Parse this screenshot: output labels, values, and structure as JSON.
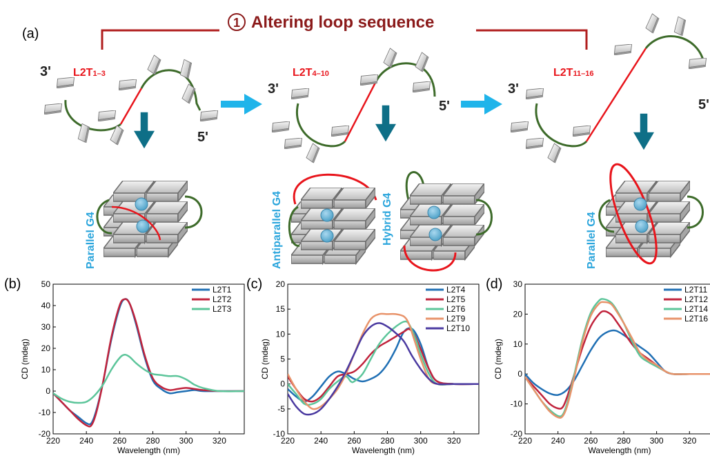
{
  "panel_a": {
    "panel_label": "(a)",
    "header_number": "1",
    "header_text": "Altering loop sequence",
    "groups": [
      {
        "seq_main": "L2T",
        "seq_sub": "1–3",
        "end3": "3'",
        "end5": "5'",
        "g4_labels": [
          "Parallel G4"
        ]
      },
      {
        "seq_main": "L2T",
        "seq_sub": "4–10",
        "end3": "3'",
        "end5": "5'",
        "g4_labels": [
          "Antiparallel G4",
          "Hybrid G4"
        ]
      },
      {
        "seq_main": "L2T",
        "seq_sub": "11–16",
        "end3": "3'",
        "end5": "5'",
        "g4_labels": [
          "Parallel G4"
        ]
      }
    ],
    "colors": {
      "strand_green": "#3d6b2a",
      "loop_red": "#e8141b",
      "arrow_cyan": "#1fb4ea",
      "arrow_teal": "#0e6f87",
      "cation": "#6bb8da",
      "header_red": "#8b1a1a"
    }
  },
  "chart_data": [
    {
      "type": "line",
      "panel_label": "(b)",
      "xlabel": "Wavelength (nm)",
      "ylabel": "CD (mdeg)",
      "xlim": [
        220,
        335
      ],
      "ylim": [
        -20,
        50
      ],
      "xticks": [
        220,
        240,
        260,
        280,
        300,
        320
      ],
      "yticks": [
        -20,
        -10,
        0,
        10,
        20,
        30,
        40,
        50
      ],
      "legend_position": "top-right",
      "series": [
        {
          "name": "L2T1",
          "color": "#1f6fb4",
          "x": [
            220,
            225,
            230,
            235,
            240,
            243,
            246,
            250,
            255,
            260,
            263,
            266,
            270,
            275,
            280,
            285,
            290,
            295,
            300,
            305,
            310,
            320,
            335
          ],
          "y": [
            -1,
            -5,
            -9,
            -12,
            -15,
            -15,
            -9,
            4,
            24,
            39,
            43,
            41,
            31,
            16,
            5,
            1,
            -1,
            -0.5,
            0,
            0.5,
            0,
            0,
            0
          ]
        },
        {
          "name": "L2T2",
          "color": "#c0223b",
          "x": [
            220,
            225,
            230,
            235,
            240,
            243,
            246,
            250,
            255,
            260,
            263,
            266,
            270,
            275,
            280,
            285,
            290,
            295,
            300,
            305,
            310,
            320,
            335
          ],
          "y": [
            -1,
            -5,
            -9,
            -13,
            -16,
            -16,
            -10,
            4,
            25,
            40,
            43,
            41,
            32,
            17,
            6,
            2,
            0.5,
            1,
            1.5,
            1,
            0.5,
            0,
            0
          ]
        },
        {
          "name": "L2T3",
          "color": "#5cc59a",
          "x": [
            220,
            225,
            230,
            235,
            240,
            245,
            250,
            255,
            260,
            263,
            266,
            270,
            275,
            280,
            285,
            290,
            295,
            300,
            305,
            310,
            320,
            335
          ],
          "y": [
            -1,
            -3.5,
            -5,
            -5.5,
            -5,
            -2,
            3,
            10,
            15.5,
            17,
            16,
            13,
            10,
            8,
            7.5,
            7,
            7,
            5.5,
            3,
            1.5,
            0,
            0
          ]
        }
      ]
    },
    {
      "type": "line",
      "panel_label": "(c)",
      "xlabel": "Wavelength (nm)",
      "ylabel": "CD (mdeg)",
      "xlim": [
        220,
        335
      ],
      "ylim": [
        -10,
        20
      ],
      "xticks": [
        220,
        240,
        260,
        280,
        300,
        320
      ],
      "yticks": [
        -10,
        -5,
        0,
        5,
        10,
        15,
        20
      ],
      "legend_position": "top-right",
      "series": [
        {
          "name": "L2T4",
          "color": "#1f6fb4",
          "x": [
            220,
            225,
            230,
            235,
            240,
            245,
            250,
            255,
            260,
            265,
            270,
            275,
            280,
            285,
            290,
            295,
            300,
            305,
            310,
            320,
            335
          ],
          "y": [
            -1,
            -2.5,
            -3.5,
            -2.5,
            -0.5,
            1.5,
            2.5,
            2,
            1,
            0.5,
            1,
            2,
            4,
            7,
            10.5,
            11,
            8,
            3,
            0.5,
            0,
            0
          ]
        },
        {
          "name": "L2T5",
          "color": "#c0223b",
          "x": [
            220,
            225,
            230,
            235,
            240,
            245,
            250,
            255,
            260,
            265,
            270,
            275,
            280,
            285,
            290,
            293,
            296,
            300,
            305,
            310,
            320,
            335
          ],
          "y": [
            1.5,
            -1,
            -3,
            -3.5,
            -2.5,
            -0.5,
            1.5,
            2,
            2.5,
            4,
            6,
            7.5,
            8.5,
            9.5,
            10.5,
            11,
            10,
            7,
            3,
            0.5,
            0,
            0
          ]
        },
        {
          "name": "L2T6",
          "color": "#5cc59a",
          "x": [
            220,
            225,
            230,
            235,
            240,
            245,
            250,
            255,
            258,
            260,
            265,
            270,
            275,
            280,
            285,
            290,
            293,
            297,
            300,
            305,
            310,
            320,
            335
          ],
          "y": [
            0,
            -2,
            -4,
            -4,
            -3,
            -1,
            0.5,
            1.5,
            0.5,
            0.5,
            2,
            5,
            8,
            10,
            11.5,
            12.5,
            12,
            9,
            6,
            2,
            0,
            0,
            0
          ]
        },
        {
          "name": "L2T9",
          "color": "#e8936a",
          "x": [
            220,
            225,
            230,
            235,
            240,
            245,
            250,
            255,
            260,
            265,
            270,
            275,
            280,
            285,
            290,
            293,
            296,
            300,
            305,
            310,
            320,
            335
          ],
          "y": [
            2,
            -1,
            -3.5,
            -5,
            -4.5,
            -3,
            -1,
            2,
            6,
            10,
            13,
            14,
            14,
            14,
            13.5,
            12,
            9,
            5,
            1,
            0,
            0,
            0
          ]
        },
        {
          "name": "L2T10",
          "color": "#4a39a0",
          "x": [
            220,
            225,
            230,
            235,
            240,
            245,
            250,
            255,
            260,
            265,
            270,
            275,
            280,
            285,
            290,
            295,
            300,
            305,
            310,
            320,
            335
          ],
          "y": [
            -2,
            -4.5,
            -6,
            -6,
            -5,
            -3,
            -0.5,
            2.5,
            6,
            9.5,
            11.5,
            12.2,
            11.5,
            10.2,
            8.5,
            5.5,
            3,
            1,
            0,
            0,
            0
          ]
        }
      ]
    },
    {
      "type": "line",
      "panel_label": "(d)",
      "xlabel": "Wavelength (nm)",
      "ylabel": "CD (mdeg)",
      "xlim": [
        220,
        335
      ],
      "ylim": [
        -20,
        30
      ],
      "xticks": [
        220,
        240,
        260,
        280,
        300,
        320
      ],
      "yticks": [
        -20,
        -10,
        0,
        10,
        20,
        30
      ],
      "legend_position": "top-right",
      "series": [
        {
          "name": "L2T11",
          "color": "#1f6fb4",
          "x": [
            220,
            225,
            230,
            235,
            240,
            245,
            250,
            255,
            260,
            265,
            270,
            275,
            280,
            285,
            290,
            295,
            300,
            305,
            310,
            320,
            335
          ],
          "y": [
            0,
            -3,
            -5,
            -6.5,
            -7,
            -5.5,
            -2,
            3,
            8,
            12,
            14,
            14.5,
            13,
            11,
            9,
            7,
            4,
            1,
            0,
            0,
            0
          ]
        },
        {
          "name": "L2T12",
          "color": "#c0223b",
          "x": [
            220,
            225,
            230,
            235,
            240,
            243,
            246,
            250,
            255,
            260,
            265,
            268,
            272,
            275,
            280,
            285,
            290,
            295,
            300,
            305,
            310,
            320,
            335
          ],
          "y": [
            -1,
            -4,
            -7,
            -10,
            -11.5,
            -11,
            -7,
            0,
            9,
            16,
            20,
            21,
            20,
            18,
            14,
            10,
            7,
            5,
            3,
            1,
            0,
            0,
            0
          ]
        },
        {
          "name": "L2T14",
          "color": "#5cc59a",
          "x": [
            220,
            225,
            230,
            235,
            240,
            243,
            246,
            250,
            255,
            260,
            265,
            268,
            272,
            275,
            280,
            285,
            290,
            295,
            300,
            305,
            310,
            320,
            335
          ],
          "y": [
            -1,
            -5,
            -9,
            -12,
            -14,
            -13.5,
            -9,
            0,
            12,
            20.5,
            24.5,
            25,
            24,
            22,
            17,
            11,
            6,
            4,
            2.5,
            1,
            0,
            0,
            0
          ]
        },
        {
          "name": "L2T16",
          "color": "#e8936a",
          "x": [
            220,
            225,
            230,
            235,
            240,
            243,
            246,
            250,
            255,
            260,
            265,
            268,
            272,
            275,
            280,
            285,
            290,
            295,
            300,
            305,
            310,
            320,
            335
          ],
          "y": [
            -1,
            -5,
            -9,
            -12.5,
            -14.5,
            -14,
            -10,
            -1,
            11,
            19.5,
            23.5,
            24,
            23.5,
            21.5,
            17,
            12,
            7,
            4.5,
            3,
            1,
            0,
            0,
            0
          ]
        }
      ]
    }
  ]
}
